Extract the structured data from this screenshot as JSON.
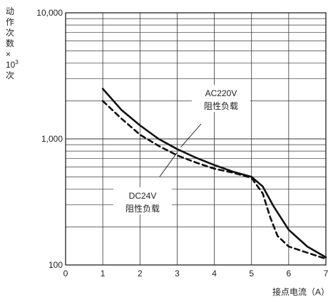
{
  "chart_data": {
    "type": "line",
    "xlabel": "接点电流（A）",
    "ylabel_chars": [
      "动",
      "作",
      "次",
      "数",
      "×",
      "10³",
      "次"
    ],
    "xlim": [
      0,
      7
    ],
    "ylim": [
      100,
      10000
    ],
    "yscale": "log",
    "grid": true,
    "x_ticks": [
      "0",
      "1",
      "2",
      "3",
      "4",
      "5",
      "6",
      "7"
    ],
    "y_ticks": [
      {
        "value": 100,
        "label": "100"
      },
      {
        "value": 1000,
        "label": "1,000"
      },
      {
        "value": 10000,
        "label": "10,000"
      }
    ],
    "series": [
      {
        "line_style": "solid",
        "color": "#111111",
        "x": [
          1,
          1.5,
          2,
          2.5,
          3,
          3.5,
          4,
          4.5,
          5,
          5.3,
          5.6,
          6,
          6.5,
          7
        ],
        "y": [
          2500,
          1700,
          1280,
          1000,
          830,
          710,
          620,
          550,
          500,
          420,
          290,
          190,
          140,
          115
        ]
      },
      {
        "line_style": "dashed",
        "color": "#111111",
        "x": [
          1,
          1.5,
          2,
          2.5,
          3,
          3.5,
          4,
          4.5,
          5,
          5.3,
          5.5,
          5.7,
          6,
          6.5,
          7
        ],
        "y": [
          2000,
          1450,
          1080,
          880,
          740,
          650,
          580,
          540,
          490,
          370,
          240,
          170,
          140,
          125,
          112
        ]
      }
    ],
    "annotations": [
      {
        "lines": [
          "AC220V",
          "阻性负载"
        ],
        "target_x": 3.1,
        "target_y": 860
      },
      {
        "lines": [
          "DC24V",
          "阻性负载"
        ],
        "target_x": 3.0,
        "target_y": 780
      }
    ]
  }
}
